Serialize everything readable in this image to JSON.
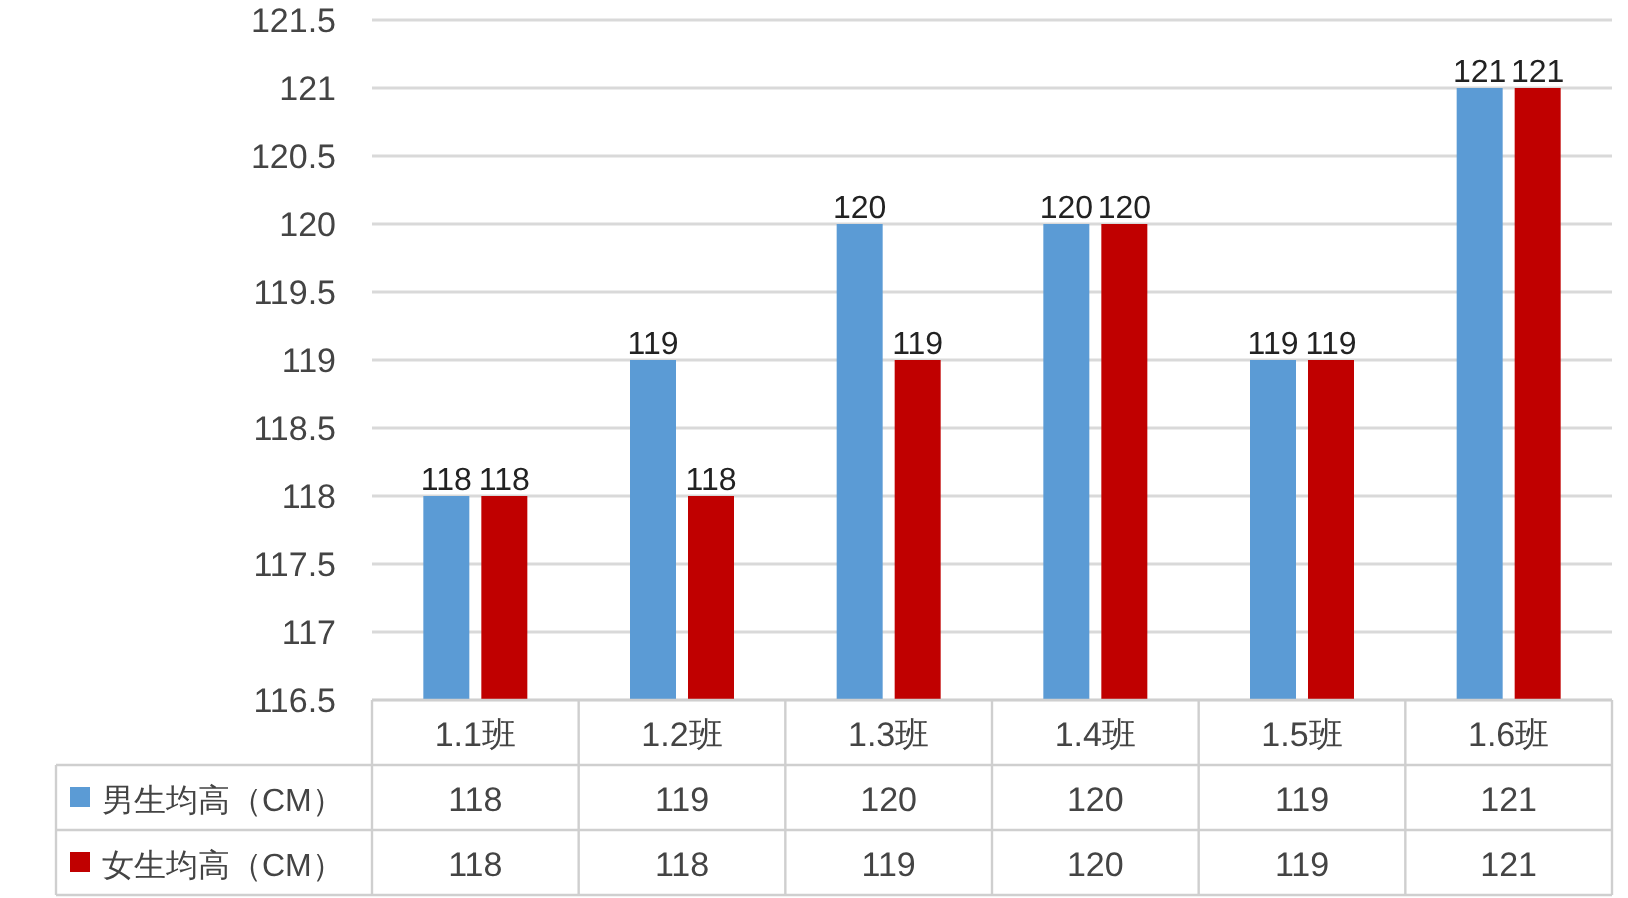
{
  "chart_data": {
    "type": "bar",
    "categories": [
      "1.1班",
      "1.2班",
      "1.3班",
      "1.4班",
      "1.5班",
      "1.6班"
    ],
    "series": [
      {
        "name": "男生均高（CM）",
        "color": "#5b9bd5",
        "values": [
          118,
          119,
          120,
          120,
          119,
          121
        ],
        "value_labels": [
          "118",
          "119",
          "120",
          "120",
          "119",
          "121"
        ]
      },
      {
        "name": "女生均高（CM）",
        "color": "#c00000",
        "values": [
          118,
          118,
          119,
          120,
          119,
          121
        ],
        "value_labels": [
          "118",
          "118",
          "119",
          "120",
          "119",
          "121"
        ]
      }
    ],
    "annotations": [
      "118",
      "119",
      "120",
      "120",
      "119",
      "121",
      "118",
      "118",
      "119",
      "120",
      "119",
      "121"
    ],
    "ylim": [
      116.5,
      121.5
    ],
    "yticks": [
      116.5,
      117,
      117.5,
      118,
      118.5,
      119,
      119.5,
      120,
      120.5,
      121,
      121.5
    ],
    "grid": "y",
    "legend": "bottom"
  }
}
